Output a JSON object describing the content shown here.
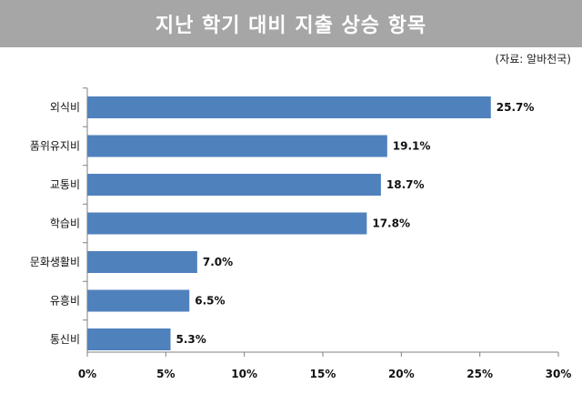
{
  "header": {
    "title": "지난 학기 대비 지출 상승 항목",
    "source": "(자료: 알바천국)"
  },
  "chart_data": {
    "type": "bar",
    "orientation": "horizontal",
    "categories": [
      "외식비",
      "품위유지비",
      "교통비",
      "학습비",
      "문화생활비",
      "유흥비",
      "통신비"
    ],
    "values": [
      25.7,
      19.1,
      18.7,
      17.8,
      7.0,
      6.5,
      5.3
    ],
    "value_labels": [
      "25.7%",
      "19.1%",
      "18.7%",
      "17.8%",
      "7.0%",
      "6.5%",
      "5.3%"
    ],
    "x_ticks": [
      0,
      5,
      10,
      15,
      20,
      25,
      30
    ],
    "x_tick_labels": [
      "0%",
      "5%",
      "10%",
      "15%",
      "20%",
      "25%",
      "30%"
    ],
    "xlim": [
      0,
      30
    ],
    "bar_color": "#4f81bd",
    "grid": false,
    "title": "지난 학기 대비 지출 상승 항목"
  }
}
